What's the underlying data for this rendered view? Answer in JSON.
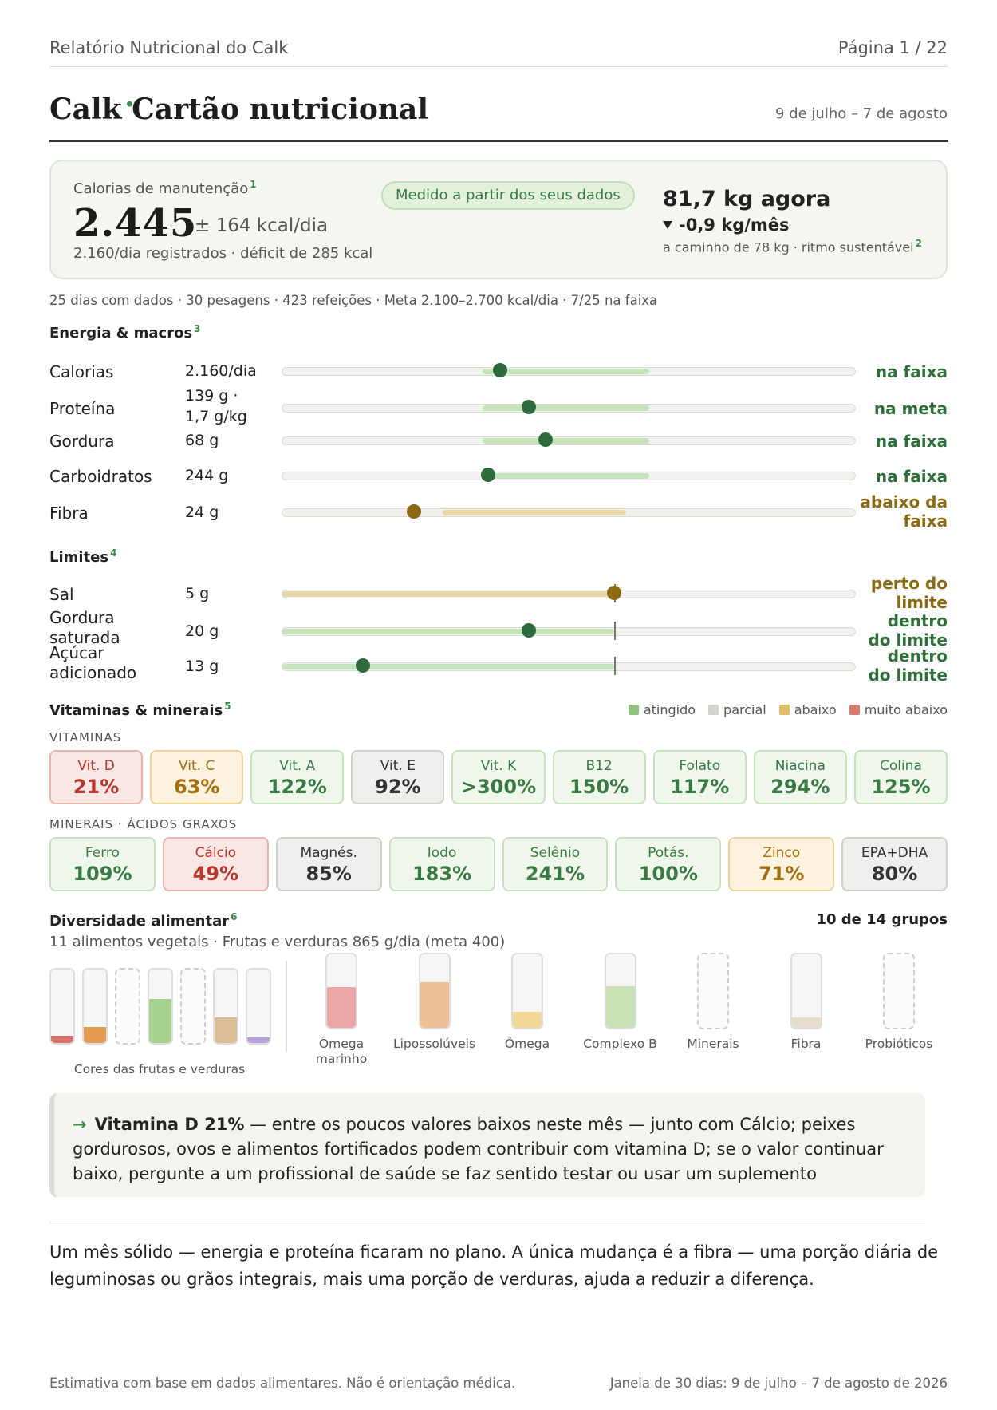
{
  "header": {
    "report_title": "Relatório Nutricional do Calk",
    "page": "Página 1 / 22"
  },
  "title": {
    "name": "Calk",
    "separator": "·",
    "card_name": "Cartão nutricional",
    "date_range": "9 de julho – 7 de agosto"
  },
  "summary": {
    "label": "Calorias de manutenção",
    "label_note": "1",
    "value": "2.445",
    "range": "± 164 kcal/dia",
    "sub": "2.160/dia registrados · déficit de 285 kcal",
    "badge": "Medido a partir dos seus dados",
    "weight": "81,7 kg agora",
    "trend": "-0,9 kg/mês",
    "path": "a caminho de 78 kg · ritmo sustentável",
    "path_note": "2"
  },
  "stats_line": "25 dias com dados · 30 pesagens · 423 refeições · Meta 2.100–2.700 kcal/dia · 7/25 na faixa",
  "energy": {
    "title": "Energia & macros",
    "note": "3",
    "rows": [
      {
        "label": "Calorias",
        "value": "2.160/dia",
        "status": "na faixa",
        "level": "ok",
        "band": [
          0.35,
          0.64
        ],
        "marker": 0.38,
        "color": "#2e6b3c"
      },
      {
        "label": "Proteína",
        "value": "139 g · 1,7 g/kg",
        "status": "na meta",
        "level": "ok",
        "band": [
          0.35,
          0.64
        ],
        "marker": 0.43,
        "color": "#2e6b3c"
      },
      {
        "label": "Gordura",
        "value": "68 g",
        "status": "na faixa",
        "level": "ok",
        "band": [
          0.35,
          0.64
        ],
        "marker": 0.46,
        "color": "#2e6b3c"
      },
      {
        "label": "Carboidratos",
        "value": "244 g",
        "status": "na faixa",
        "level": "ok",
        "band": [
          0.35,
          0.64
        ],
        "marker": 0.36,
        "color": "#2e6b3c"
      },
      {
        "label": "Fibra",
        "value": "24 g",
        "status": "abaixo da faixa",
        "level": "warn",
        "band": [
          0.28,
          0.6
        ],
        "marker": 0.23,
        "color": "#8a6a12"
      }
    ]
  },
  "limits": {
    "title": "Limites",
    "note": "4",
    "rows": [
      {
        "label": "Sal",
        "value": "5 g",
        "status": "perto do limite",
        "level": "warn",
        "fill": 0.58,
        "limit": 0.58,
        "color": "#8a6a12"
      },
      {
        "label": "Gordura saturada",
        "value": "20 g",
        "status": "dentro do limite",
        "level": "ok",
        "fill": 0.58,
        "limit": 0.58,
        "marker": 0.43,
        "color": "#2e6b3c"
      },
      {
        "label": "Açúcar adicionado",
        "value": "13 g",
        "status": "dentro do limite",
        "level": "ok",
        "fill": 0.58,
        "limit": 0.58,
        "marker": 0.14,
        "color": "#2e6b3c"
      }
    ]
  },
  "micros": {
    "title": "Vitaminas & minerais",
    "note": "5",
    "legend": [
      {
        "label": "atingido",
        "color": "#8cc27e"
      },
      {
        "label": "parcial",
        "color": "#d3d3cf"
      },
      {
        "label": "abaixo",
        "color": "#e2bd66"
      },
      {
        "label": "muito abaixo",
        "color": "#d97a70"
      }
    ],
    "vitamins_label": "VITAMINAS",
    "vitamins": [
      {
        "name": "Vit. D",
        "value": "21%",
        "status": "red"
      },
      {
        "name": "Vit. C",
        "value": "63%",
        "status": "amber"
      },
      {
        "name": "Vit. A",
        "value": "122%",
        "status": "green"
      },
      {
        "name": "Vit. E",
        "value": "92%",
        "status": "gray"
      },
      {
        "name": "Vit. K",
        "value": ">300%",
        "status": "green"
      },
      {
        "name": "B12",
        "value": "150%",
        "status": "green"
      },
      {
        "name": "Folato",
        "value": "117%",
        "status": "green"
      },
      {
        "name": "Niacina",
        "value": "294%",
        "status": "green"
      },
      {
        "name": "Colina",
        "value": "125%",
        "status": "green"
      }
    ],
    "minerals_label": "MINERAIS · ÁCIDOS GRAXOS",
    "minerals": [
      {
        "name": "Ferro",
        "value": "109%",
        "status": "green"
      },
      {
        "name": "Cálcio",
        "value": "49%",
        "status": "red"
      },
      {
        "name": "Magnés.",
        "value": "85%",
        "status": "gray"
      },
      {
        "name": "Iodo",
        "value": "183%",
        "status": "green"
      },
      {
        "name": "Selênio",
        "value": "241%",
        "status": "green"
      },
      {
        "name": "Potás.",
        "value": "100%",
        "status": "green"
      },
      {
        "name": "Zinco",
        "value": "71%",
        "status": "amber"
      },
      {
        "name": "EPA+DHA",
        "value": "80%",
        "status": "gray"
      }
    ]
  },
  "diversity": {
    "title": "Diversidade alimentar",
    "note": "6",
    "groups": "10 de 14 grupos",
    "sub": "11 alimentos vegetais · Frutas e verduras 865 g/dia (meta 400)",
    "colors_label": "Cores das frutas e verduras",
    "color_tubes": [
      {
        "fill": 0.1,
        "color": "#d9726c",
        "dashed": false
      },
      {
        "fill": 0.22,
        "color": "#e49a4f",
        "dashed": false
      },
      {
        "fill": 0,
        "color": "#cccccc",
        "dashed": true
      },
      {
        "fill": 0.6,
        "color": "#a8d08f",
        "dashed": false
      },
      {
        "fill": 0,
        "color": "#cccccc",
        "dashed": true
      },
      {
        "fill": 0.35,
        "color": "#d9bd96",
        "dashed": false
      },
      {
        "fill": 0.08,
        "color": "#b8a0df",
        "dashed": false
      }
    ],
    "group_tubes": [
      {
        "label": "Ômega marinho",
        "fill": 0.55,
        "color": "#eaa7a5",
        "dashed": false
      },
      {
        "label": "Lipossolúveis",
        "fill": 0.62,
        "color": "#f0c095",
        "dashed": false
      },
      {
        "label": "Ômega",
        "fill": 0.22,
        "color": "#efd898",
        "dashed": false
      },
      {
        "label": "Complexo B",
        "fill": 0.57,
        "color": "#c6e2b4",
        "dashed": false
      },
      {
        "label": "Minerais",
        "fill": 0,
        "color": "#cccccc",
        "dashed": true
      },
      {
        "label": "Fibra",
        "fill": 0.14,
        "color": "#e7dccb",
        "dashed": false
      },
      {
        "label": "Probióticos",
        "fill": 0,
        "color": "#cccccc",
        "dashed": true
      }
    ]
  },
  "callout": {
    "arrow": "→",
    "bold": "Vitamina D 21%",
    "text": " — entre os poucos valores baixos neste mês — junto com Cálcio; peixes gordurosos, ovos e alimentos fortificados podem contribuir com vitamina D; se o valor continuar baixo, pergunte a um profissional de saúde se faz sentido testar ou usar um suplemento"
  },
  "conclusion": "Um mês sólido — energia e proteína ficaram no plano. A única mudança é a fibra — uma porção diária de leguminosas ou grãos integrais, mais uma porção de verduras, ajuda a reduzir a diferença.",
  "footer": {
    "disclaimer": "Estimativa com base em dados alimentares. Não é orientação médica.",
    "window": "Janela de 30 dias: 9 de julho – 7 de agosto de 2026"
  }
}
